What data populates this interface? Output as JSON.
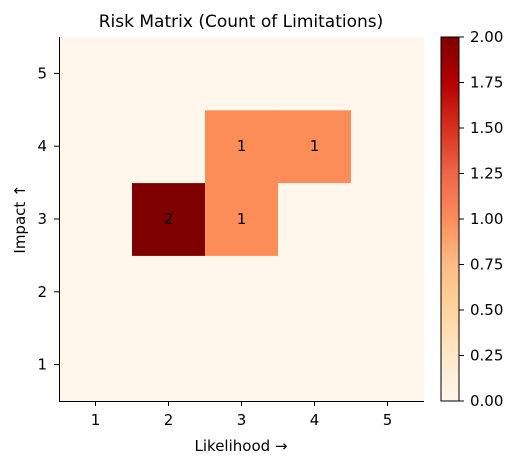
{
  "chart_data": {
    "type": "heatmap",
    "title": "Risk Matrix (Count of Limitations)",
    "xlabel": "Likelihood →",
    "ylabel": "Impact ↑",
    "x_categories": [
      "1",
      "2",
      "3",
      "4",
      "5"
    ],
    "y_categories": [
      "1",
      "2",
      "3",
      "4",
      "5"
    ],
    "z": [
      [
        0,
        0,
        0,
        0,
        0
      ],
      [
        0,
        0,
        0,
        0,
        0
      ],
      [
        0,
        2,
        1,
        0,
        0
      ],
      [
        0,
        0,
        1,
        1,
        0
      ],
      [
        0,
        0,
        0,
        0,
        0
      ]
    ],
    "cell_labels": [
      {
        "likelihood": 2,
        "impact": 3,
        "text": "2"
      },
      {
        "likelihood": 3,
        "impact": 3,
        "text": "1"
      },
      {
        "likelihood": 3,
        "impact": 4,
        "text": "1"
      },
      {
        "likelihood": 4,
        "impact": 4,
        "text": "1"
      }
    ],
    "colorscale": "OrRd",
    "zlim": [
      0,
      2
    ],
    "colorbar_ticks": [
      "0.00",
      "0.25",
      "0.50",
      "0.75",
      "1.00",
      "1.25",
      "1.50",
      "1.75",
      "2.00"
    ],
    "colorbar_tick_values": [
      0,
      0.25,
      0.5,
      0.75,
      1,
      1.25,
      1.5,
      1.75,
      2
    ],
    "colors": {
      "low": "#fff7ec",
      "mid": "#fc8d59",
      "high": "#7f0000"
    },
    "grid": false
  }
}
